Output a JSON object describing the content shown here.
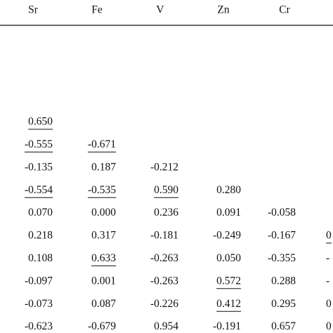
{
  "table": {
    "header": [
      "Sr",
      "Fe",
      "V",
      "Zn",
      "Cr"
    ],
    "rows": [
      [
        {
          "text": "0.650",
          "underlined": true
        }
      ],
      [
        {
          "text": "-0.555",
          "underlined": true
        },
        {
          "text": "-0.671",
          "underlined": true
        }
      ],
      [
        "-0.135",
        "0.187",
        "-0.212"
      ],
      [
        {
          "text": "-0.554",
          "underlined": true
        },
        {
          "text": "-0.535",
          "underlined": true
        },
        {
          "text": "0.590",
          "underlined": true
        },
        "0.280"
      ],
      [
        "0.070",
        "0.000",
        "0.236",
        "0.091",
        "-0.058"
      ],
      [
        "0.218",
        "0.317",
        "-0.181",
        "-0.249",
        "-0.167",
        {
          "text": "0",
          "underlined": true
        }
      ],
      [
        "0.108",
        {
          "text": "0.633",
          "underlined": true
        },
        "-0.263",
        "0.050",
        "-0.355",
        "-"
      ],
      [
        "-0.097",
        "0.001",
        "-0.263",
        {
          "text": "0.572",
          "underlined": true
        },
        "0.288",
        "-"
      ],
      [
        "-0.073",
        "0.087",
        "-0.226",
        {
          "text": "0.412",
          "underlined": true
        },
        "0.295",
        "0"
      ],
      [
        {
          "text": "-0.623",
          "underlined": true
        },
        {
          "text": "-0.679",
          "underlined": true
        },
        {
          "text": "0.954",
          "underlined": true
        },
        "-0.191",
        {
          "text": "0.657",
          "underlined": true
        },
        "0"
      ]
    ]
  }
}
